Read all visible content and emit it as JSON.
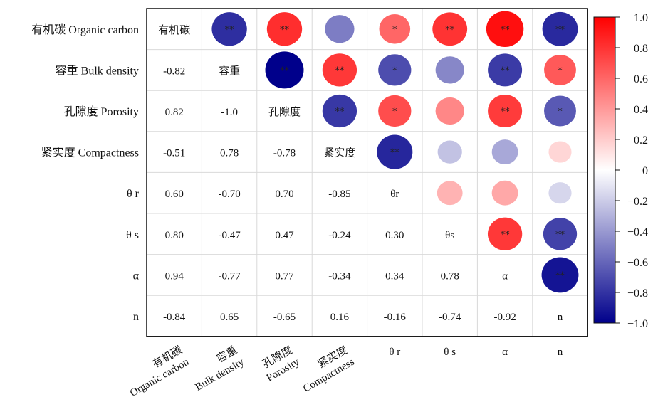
{
  "chart_data": {
    "type": "heatmap",
    "variant": "correlation-matrix-lower-values-upper-circles",
    "row_labels": [
      "有机碳 Organic carbon",
      "容重 Bulk density",
      "孔隙度 Porosity",
      "紧实度 Compactness",
      "θ r",
      "θ s",
      "α",
      "n"
    ],
    "col_labels": [
      [
        "有机碳",
        "Organic carbon"
      ],
      [
        "容重",
        "Bulk density"
      ],
      [
        "孔隙度",
        "Porosity"
      ],
      [
        "紧实度",
        "Compactness"
      ],
      [
        "θ r"
      ],
      [
        "θ s"
      ],
      [
        "α"
      ],
      [
        "n"
      ]
    ],
    "diag_labels": [
      "有机碳",
      "容重",
      "孔隙度",
      "紧实度",
      "θr",
      "θs",
      "α",
      "n"
    ],
    "matrix": [
      [
        1,
        -0.82,
        0.82,
        -0.51,
        0.6,
        0.8,
        0.94,
        -0.84
      ],
      [
        -0.82,
        1,
        -1.0,
        0.78,
        -0.7,
        -0.47,
        -0.77,
        0.65
      ],
      [
        0.82,
        -1.0,
        1,
        -0.78,
        0.7,
        0.47,
        0.77,
        -0.65
      ],
      [
        -0.51,
        0.78,
        -0.78,
        1,
        -0.85,
        -0.24,
        -0.34,
        0.16
      ],
      [
        0.6,
        -0.7,
        0.7,
        -0.85,
        1,
        0.3,
        0.34,
        -0.16
      ],
      [
        0.8,
        -0.47,
        0.47,
        -0.24,
        0.3,
        1,
        0.78,
        -0.74
      ],
      [
        0.94,
        -0.77,
        0.77,
        -0.34,
        0.34,
        0.78,
        1,
        -0.92
      ],
      [
        -0.84,
        0.65,
        -0.65,
        0.16,
        -0.16,
        -0.74,
        -0.92,
        1
      ]
    ],
    "lower_text": [
      [
        null,
        null,
        null,
        null,
        null,
        null,
        null,
        null
      ],
      [
        "-0.82",
        null,
        null,
        null,
        null,
        null,
        null,
        null
      ],
      [
        "0.82",
        "-1.0",
        null,
        null,
        null,
        null,
        null,
        null
      ],
      [
        "-0.51",
        "0.78",
        "-0.78",
        null,
        null,
        null,
        null,
        null
      ],
      [
        "0.60",
        "-0.70",
        "0.70",
        "-0.85",
        null,
        null,
        null,
        null
      ],
      [
        "0.80",
        "-0.47",
        "0.47",
        "-0.24",
        "0.30",
        null,
        null,
        null
      ],
      [
        "0.94",
        "-0.77",
        "0.77",
        "-0.34",
        "0.34",
        "0.78",
        null,
        null
      ],
      [
        "-0.84",
        "0.65",
        "-0.65",
        "0.16",
        "-0.16",
        "-0.74",
        "-0.92",
        null
      ]
    ],
    "significance": [
      [
        "",
        "**",
        "**",
        "",
        "*",
        "**",
        "**",
        "**"
      ],
      [
        "",
        "",
        "**",
        "**",
        "*",
        "",
        "**",
        "*"
      ],
      [
        "",
        "",
        "",
        "**",
        "*",
        "",
        "**",
        "*"
      ],
      [
        "",
        "",
        "",
        "",
        "**",
        "",
        "",
        ""
      ],
      [
        "",
        "",
        "",
        "",
        "",
        "",
        "",
        ""
      ],
      [
        "",
        "",
        "",
        "",
        "",
        "",
        "**",
        "**"
      ],
      [
        "",
        "",
        "",
        "",
        "",
        "",
        "",
        "**"
      ],
      [
        "",
        "",
        "",
        "",
        "",
        "",
        "",
        ""
      ]
    ],
    "colorbar": {
      "ticks": [
        "1.0",
        "0.8",
        "0.6",
        "0.4",
        "0.2",
        "0",
        "−0.2",
        "−0.4",
        "−0.6",
        "−0.8",
        "−1.0"
      ],
      "range": [
        -1.0,
        1.0
      ],
      "colors": {
        "neg": "#00008b",
        "mid": "#ffffff",
        "pos": "#ff0000"
      }
    }
  }
}
